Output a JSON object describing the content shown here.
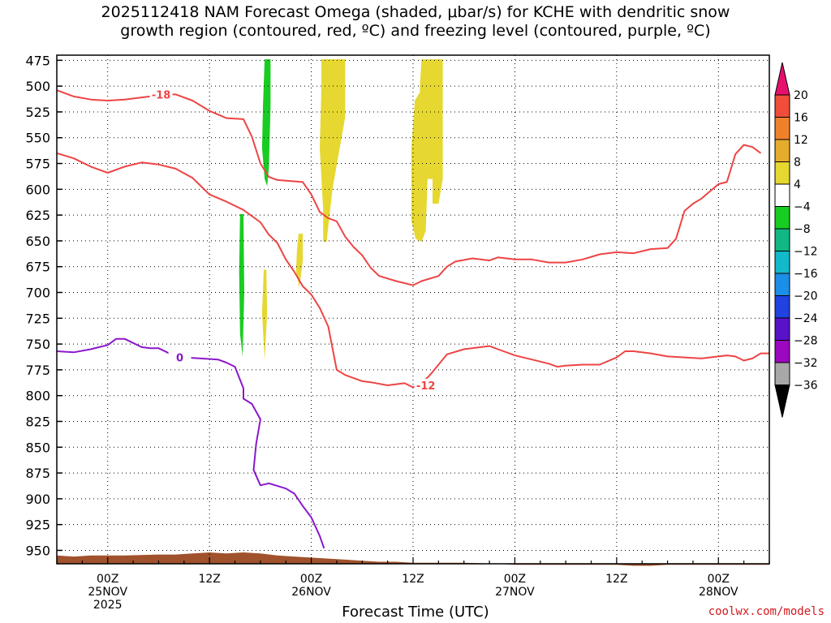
{
  "title_lines": [
    "2025112418 NAM Forecast Omega (shaded, μbar/s) for KCHE with dendritic snow",
    "growth region (contoured, red, ºC) and freezing level (contoured, purple, ºC)"
  ],
  "credit": "coolwx.com/models",
  "chart_data": {
    "type": "time-height cross section",
    "xlabel": "Forecast Time (UTC)",
    "x_unit": "forecast hour from 2025112418",
    "xlim": [
      0,
      84
    ],
    "x_ticks": [
      {
        "hour": 6,
        "lines": [
          "00Z",
          "25NOV",
          "2025"
        ]
      },
      {
        "hour": 18,
        "lines": [
          "12Z"
        ]
      },
      {
        "hour": 30,
        "lines": [
          "00Z",
          "26NOV"
        ]
      },
      {
        "hour": 42,
        "lines": [
          "12Z"
        ]
      },
      {
        "hour": 54,
        "lines": [
          "00Z",
          "27NOV"
        ]
      },
      {
        "hour": 66,
        "lines": [
          "12Z"
        ]
      },
      {
        "hour": 78,
        "lines": [
          "00Z",
          "28NOV"
        ]
      }
    ],
    "y_unit": "pressure (mb)",
    "ylim": [
      963,
      470
    ],
    "y_ticks": [
      475,
      500,
      525,
      550,
      575,
      600,
      625,
      650,
      675,
      700,
      725,
      750,
      775,
      800,
      825,
      850,
      875,
      900,
      925,
      950
    ],
    "grid": true,
    "colorbar": {
      "labels": [
        "20",
        "16",
        "12",
        "8",
        "4",
        "−4",
        "−8",
        "−12",
        "−16",
        "−20",
        "−24",
        "−28",
        "−32",
        "−36"
      ],
      "colors": [
        "#e8106e",
        "#f04d3a",
        "#f0812b",
        "#e5ac2e",
        "#e6d830",
        "#ffffff",
        "#19cc22",
        "#11b884",
        "#13b9c8",
        "#1b8ee8",
        "#1f42e0",
        "#5a12c8",
        "#9b08bf",
        "#a8a8a8",
        "#000000"
      ]
    },
    "contours": [
      {
        "label": "-18",
        "color": "#ee4444",
        "label_at": [
          12.3,
          508
        ],
        "points": [
          [
            0,
            504
          ],
          [
            2,
            510
          ],
          [
            4,
            513
          ],
          [
            6,
            514
          ],
          [
            8,
            513
          ],
          [
            10,
            511
          ],
          [
            12,
            509
          ],
          [
            14,
            508
          ],
          [
            16,
            514
          ],
          [
            18,
            524
          ],
          [
            20,
            531
          ],
          [
            22,
            532
          ],
          [
            23,
            549
          ],
          [
            24,
            575
          ],
          [
            25,
            588
          ],
          [
            26,
            591
          ],
          [
            29,
            593
          ],
          [
            30,
            605
          ],
          [
            31,
            622
          ],
          [
            32,
            628
          ],
          [
            33,
            631
          ],
          [
            34,
            646
          ],
          [
            35,
            656
          ],
          [
            36,
            664
          ],
          [
            37,
            676
          ],
          [
            38,
            684
          ],
          [
            40,
            689
          ],
          [
            42,
            693
          ],
          [
            43,
            689
          ],
          [
            45,
            684
          ],
          [
            46,
            675
          ],
          [
            47,
            670
          ],
          [
            49,
            667
          ],
          [
            51,
            669
          ],
          [
            52,
            666
          ],
          [
            54,
            668
          ],
          [
            56,
            668
          ],
          [
            58,
            671
          ],
          [
            60,
            671
          ],
          [
            62,
            668
          ],
          [
            64,
            663
          ],
          [
            66,
            661
          ],
          [
            68,
            662
          ],
          [
            70,
            658
          ],
          [
            72,
            657
          ],
          [
            73,
            648
          ],
          [
            74,
            621
          ],
          [
            75,
            614
          ],
          [
            76,
            609
          ],
          [
            77,
            602
          ],
          [
            78,
            595
          ],
          [
            79,
            593
          ],
          [
            80,
            566
          ],
          [
            81,
            557
          ],
          [
            82,
            559
          ],
          [
            83,
            565
          ]
        ]
      },
      {
        "label": "-12",
        "color": "#ee4444",
        "label_at": [
          43.5,
          790
        ],
        "points": [
          [
            0,
            565
          ],
          [
            2,
            570
          ],
          [
            4,
            578
          ],
          [
            6,
            584
          ],
          [
            8,
            578
          ],
          [
            10,
            574
          ],
          [
            12,
            576
          ],
          [
            14,
            580
          ],
          [
            16,
            589
          ],
          [
            18,
            605
          ],
          [
            20,
            612
          ],
          [
            22,
            620
          ],
          [
            24,
            632
          ],
          [
            25,
            644
          ],
          [
            26,
            652
          ],
          [
            27,
            668
          ],
          [
            28,
            680
          ],
          [
            29,
            694
          ],
          [
            30,
            702
          ],
          [
            31,
            715
          ],
          [
            32,
            733
          ],
          [
            33,
            775
          ],
          [
            34,
            780
          ],
          [
            35,
            783
          ],
          [
            36,
            786
          ],
          [
            37,
            787
          ],
          [
            39,
            790
          ],
          [
            41,
            788
          ],
          [
            42,
            792
          ],
          [
            43,
            788
          ],
          [
            44,
            780
          ],
          [
            45,
            770
          ],
          [
            46,
            760
          ],
          [
            48,
            755
          ],
          [
            50,
            753
          ],
          [
            51,
            752
          ],
          [
            52,
            755
          ],
          [
            54,
            761
          ],
          [
            56,
            765
          ],
          [
            58,
            769
          ],
          [
            59,
            772
          ],
          [
            60,
            771
          ],
          [
            62,
            770
          ],
          [
            64,
            770
          ],
          [
            66,
            763
          ],
          [
            67,
            757
          ],
          [
            68,
            757
          ],
          [
            70,
            759
          ],
          [
            72,
            762
          ],
          [
            74,
            763
          ],
          [
            76,
            764
          ],
          [
            78,
            762
          ],
          [
            79,
            761
          ],
          [
            80,
            762
          ],
          [
            81,
            766
          ],
          [
            82,
            764
          ],
          [
            83,
            759
          ],
          [
            84,
            759
          ]
        ]
      },
      {
        "label": "0",
        "color": "#8a18cc",
        "label_at": [
          14.5,
          763
        ],
        "points": [
          [
            0,
            757
          ],
          [
            2,
            758
          ],
          [
            4,
            755
          ],
          [
            5,
            753
          ],
          [
            6,
            751
          ],
          [
            7,
            745
          ],
          [
            8,
            745
          ],
          [
            9,
            749
          ],
          [
            10,
            753
          ],
          [
            11,
            754
          ],
          [
            12,
            754
          ],
          [
            13,
            758
          ],
          [
            14,
            763
          ],
          [
            15,
            763
          ],
          [
            17,
            764
          ],
          [
            19,
            765
          ],
          [
            20,
            768
          ],
          [
            21,
            772
          ],
          [
            22,
            793
          ],
          [
            22,
            803
          ],
          [
            23,
            808
          ],
          [
            24,
            823
          ],
          [
            23.5,
            847
          ],
          [
            23.2,
            872
          ],
          [
            24,
            887
          ],
          [
            25,
            885
          ],
          [
            27,
            890
          ],
          [
            28,
            895
          ],
          [
            29,
            907
          ],
          [
            30,
            918
          ],
          [
            31,
            936
          ],
          [
            31.5,
            948
          ]
        ]
      }
    ],
    "omega_regions": [
      {
        "value_range": "-8 to -4",
        "color": "#19cc22",
        "polygon": [
          [
            24.5,
            474
          ],
          [
            25.2,
            474
          ],
          [
            25.2,
            520
          ],
          [
            25,
            580
          ],
          [
            24.8,
            597
          ],
          [
            24.5,
            590
          ],
          [
            24.2,
            560
          ],
          [
            24.3,
            520
          ]
        ]
      },
      {
        "value_range": "-8 to -4",
        "color": "#19cc22",
        "polygon": [
          [
            21.6,
            624
          ],
          [
            22,
            624
          ],
          [
            22.1,
            700
          ],
          [
            21.9,
            762
          ],
          [
            21.6,
            740
          ],
          [
            21.5,
            680
          ]
        ]
      },
      {
        "value_range": "4 to 8",
        "color": "#e6d830",
        "polygon": [
          [
            31.2,
            474
          ],
          [
            34,
            474
          ],
          [
            34,
            530
          ],
          [
            32.5,
            600
          ],
          [
            31.8,
            651
          ],
          [
            31.4,
            651
          ],
          [
            31.4,
            620
          ],
          [
            31,
            560
          ],
          [
            31.2,
            500
          ]
        ]
      },
      {
        "value_range": "4 to 8",
        "color": "#e6d830",
        "polygon": [
          [
            43,
            474
          ],
          [
            45.5,
            474
          ],
          [
            45.5,
            590
          ],
          [
            45,
            614
          ],
          [
            44.3,
            614
          ],
          [
            44.3,
            590
          ],
          [
            43.7,
            590
          ],
          [
            43.5,
            640
          ],
          [
            43,
            651
          ],
          [
            42.3,
            648
          ],
          [
            41.8,
            630
          ],
          [
            41.8,
            560
          ],
          [
            42.2,
            514
          ],
          [
            42.8,
            506
          ],
          [
            42.8,
            500
          ]
        ]
      },
      {
        "value_range": "4 to 8",
        "color": "#e6d830",
        "polygon": [
          [
            28.5,
            643
          ],
          [
            29,
            643
          ],
          [
            29,
            670
          ],
          [
            28.6,
            695
          ],
          [
            28.2,
            680
          ],
          [
            28.3,
            660
          ]
        ]
      },
      {
        "value_range": "4 to 8",
        "color": "#e6d830",
        "polygon": [
          [
            24.4,
            678
          ],
          [
            24.7,
            678
          ],
          [
            24.8,
            720
          ],
          [
            24.5,
            765
          ],
          [
            24.2,
            720
          ]
        ]
      }
    ],
    "terrain_color": "#a0522d",
    "terrain_top_pressure": [
      [
        0,
        955
      ],
      [
        2,
        956
      ],
      [
        4,
        955
      ],
      [
        8,
        955
      ],
      [
        12,
        954
      ],
      [
        14,
        954
      ],
      [
        16,
        953
      ],
      [
        18,
        952
      ],
      [
        20,
        953
      ],
      [
        22,
        952
      ],
      [
        24,
        953
      ],
      [
        26,
        955
      ],
      [
        28,
        956
      ],
      [
        30,
        957
      ],
      [
        32,
        958
      ],
      [
        34,
        959
      ],
      [
        36,
        960
      ],
      [
        38,
        961
      ],
      [
        40,
        961
      ],
      [
        42,
        962
      ],
      [
        44,
        962
      ],
      [
        46,
        962
      ],
      [
        48,
        962
      ],
      [
        52,
        963
      ],
      [
        54,
        964
      ],
      [
        58,
        964
      ],
      [
        62,
        964
      ],
      [
        66,
        964
      ],
      [
        68,
        965
      ],
      [
        70,
        965
      ],
      [
        72,
        964
      ],
      [
        76,
        964
      ],
      [
        80,
        964
      ],
      [
        84,
        964
      ]
    ]
  }
}
